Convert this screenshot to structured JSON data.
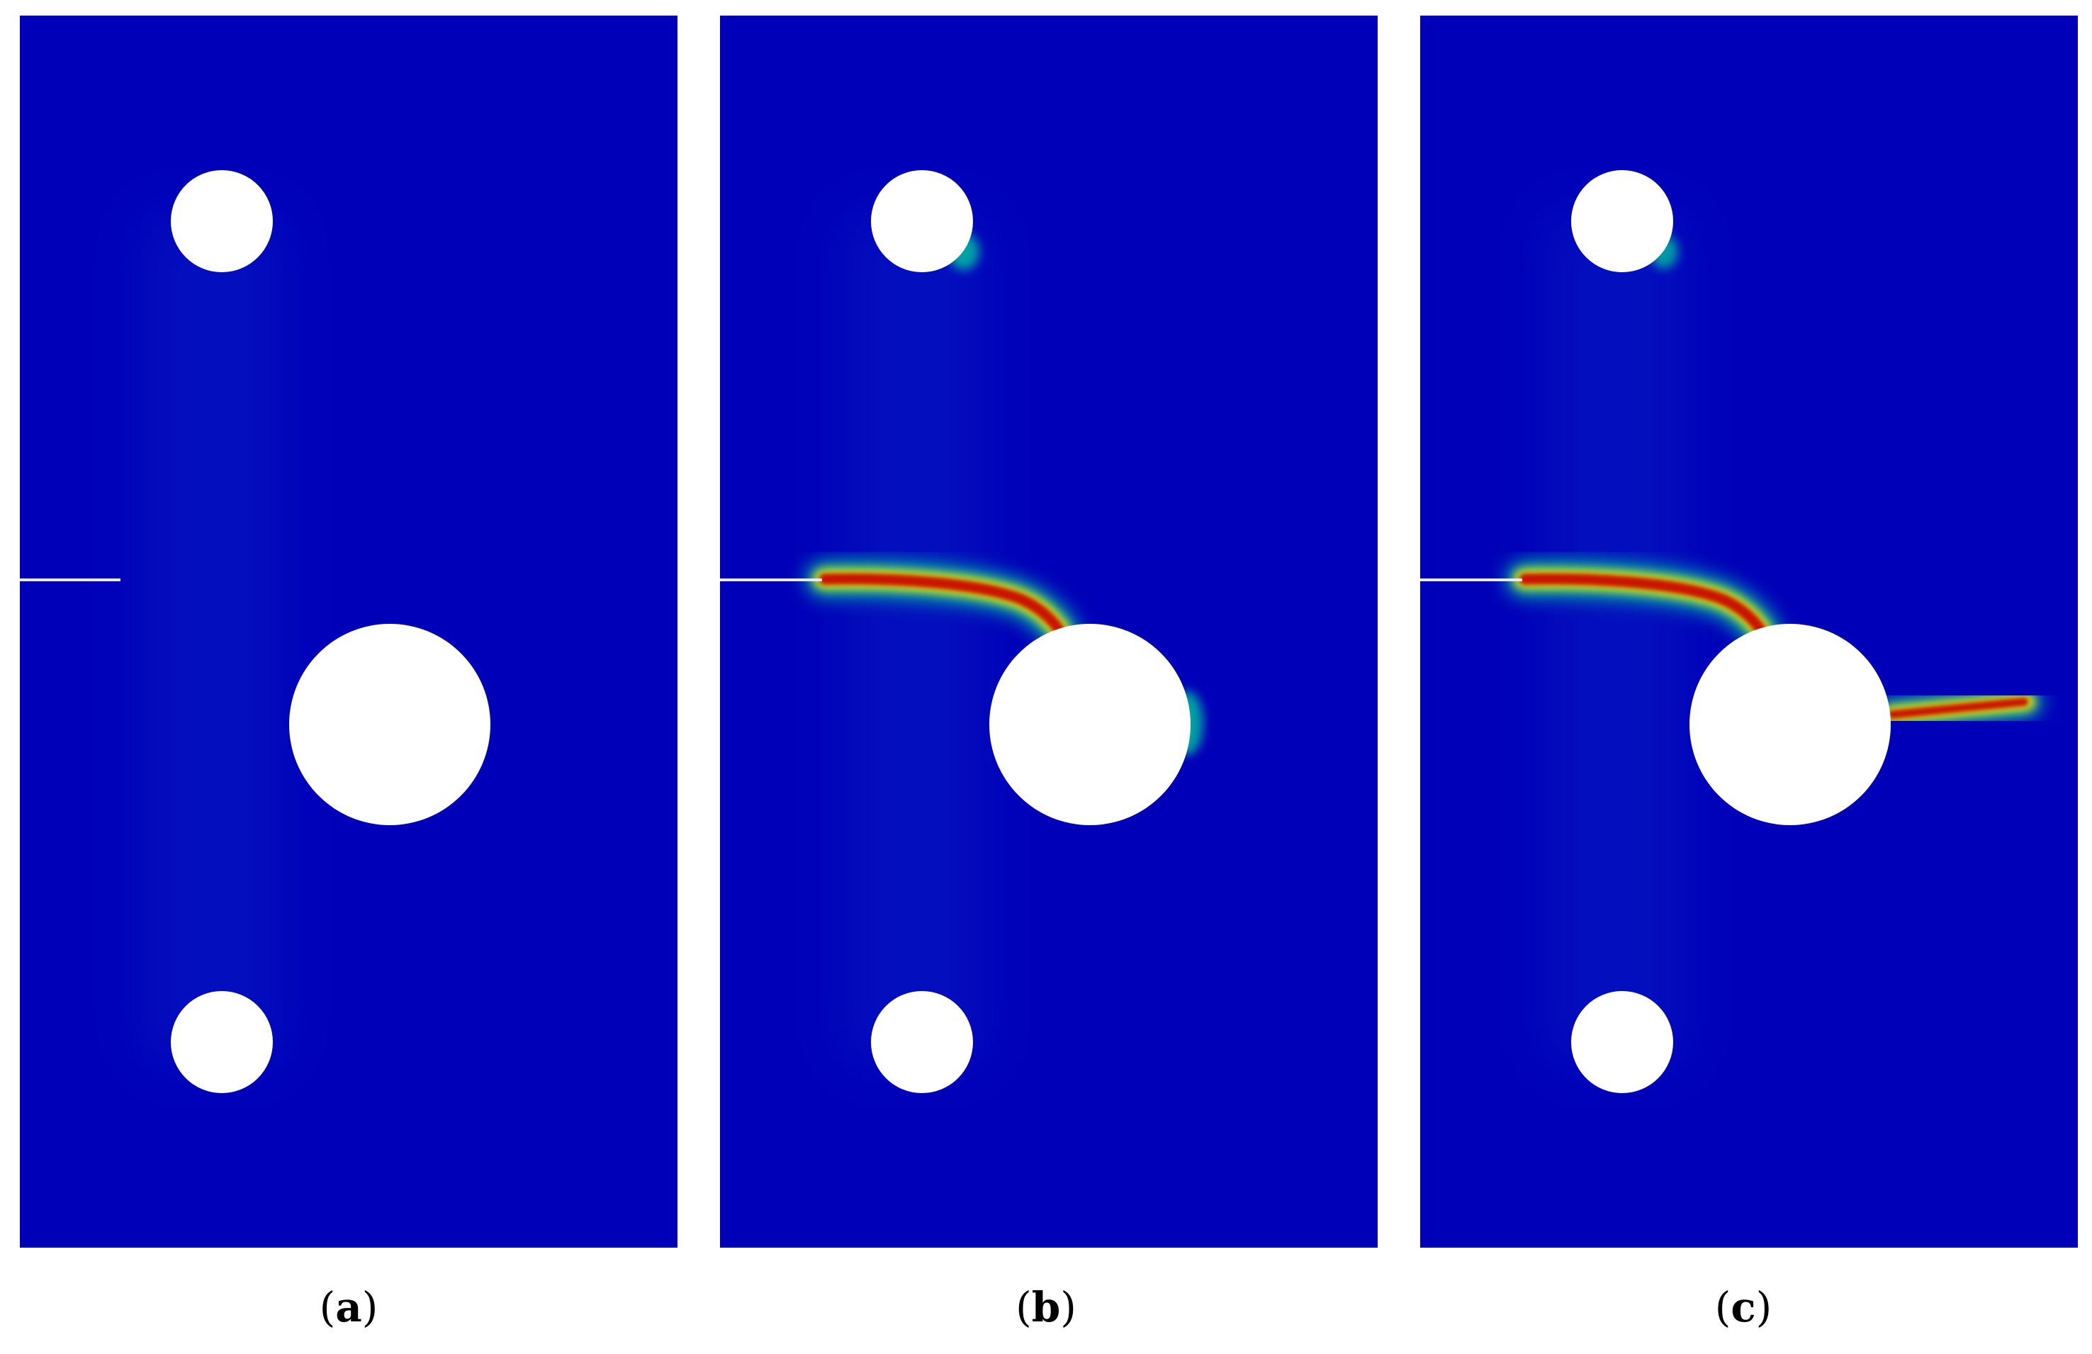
{
  "colors": {
    "background_field": "#0000b8",
    "hole": "#ffffff",
    "crack_core": "#c81400",
    "crack_mid": "#f0e000",
    "crack_halo": "#00c8a0",
    "notch": "#e8e8ff"
  },
  "panels": [
    {
      "id": "a",
      "caption_open": "(",
      "caption_letter": "a",
      "caption_close": ")"
    },
    {
      "id": "b",
      "caption_open": "(",
      "caption_letter": "b",
      "caption_close": ")"
    },
    {
      "id": "c",
      "caption_open": "(",
      "caption_letter": "c",
      "caption_close": ")"
    }
  ]
}
